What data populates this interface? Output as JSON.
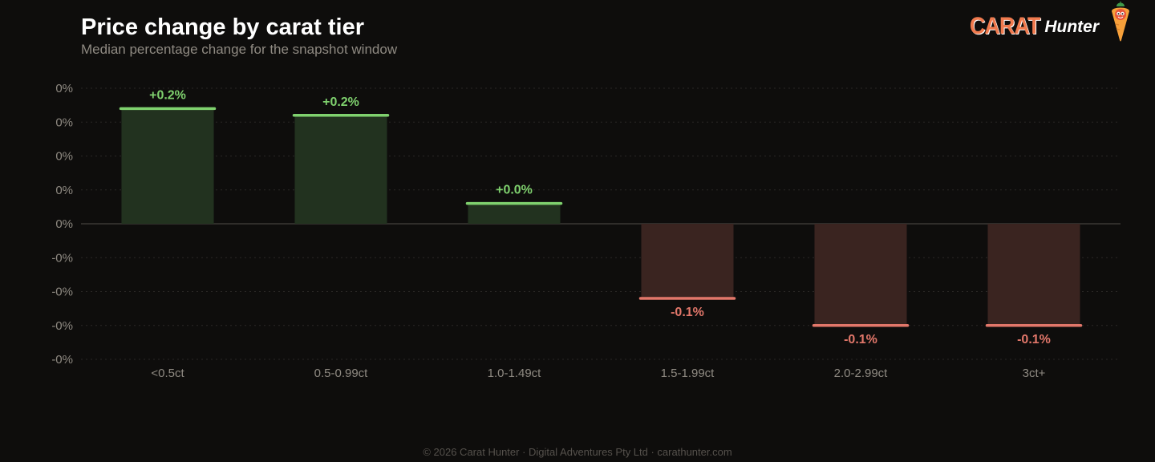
{
  "header": {
    "title": "Price change by carat tier",
    "subtitle": "Median percentage change for the snapshot window"
  },
  "brand": {
    "word1": "CARAT",
    "word2": "Hunter",
    "mascot_icon": "carrot-mascot-icon"
  },
  "footer": {
    "text": "© 2026 Carat Hunter · Digital Adventures Pty Ltd · carathunter.com"
  },
  "colors": {
    "background": "#0e0d0c",
    "positive": "#7fd16e",
    "positive_fill": "#22321f",
    "negative": "#e2776a",
    "negative_fill": "#3a2420",
    "brand_accent": "#f07a4e"
  },
  "chart_data": {
    "type": "bar",
    "categories": [
      "<0.5ct",
      "0.5-0.99ct",
      "1.0-1.49ct",
      "1.5-1.99ct",
      "2.0-2.99ct",
      "3ct+"
    ],
    "values": [
      0.17,
      0.16,
      0.03,
      -0.11,
      -0.15,
      -0.15
    ],
    "value_labels": [
      "+0.2%",
      "+0.2%",
      "+0.0%",
      "-0.1%",
      "-0.1%",
      "-0.1%"
    ],
    "ylim": [
      -0.2,
      0.2
    ],
    "yticks": [
      0.2,
      0.15,
      0.1,
      0.05,
      0,
      -0.05,
      -0.1,
      -0.15,
      -0.2
    ],
    "ytick_labels": [
      "0%",
      "0%",
      "0%",
      "0%",
      "0%",
      "-0%",
      "-0%",
      "-0%",
      "-0%"
    ],
    "grid": true,
    "legend": "none"
  }
}
